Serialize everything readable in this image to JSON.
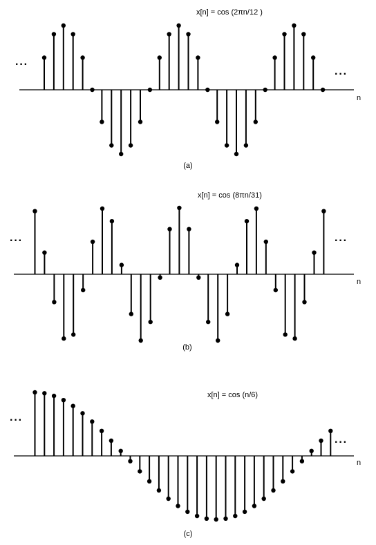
{
  "panels": [
    {
      "id": "a",
      "equation": "x[n] = cos (2πn/12 )",
      "caption": "(a)",
      "axis_label": "n",
      "ellipsis_left": "···",
      "ellipsis_right": "···"
    },
    {
      "id": "b",
      "equation": "x[n] = cos (8πn/31)",
      "caption": "(b)",
      "axis_label": "n",
      "ellipsis_left": "···",
      "ellipsis_right": "···"
    },
    {
      "id": "c",
      "equation": "x[n] = cos (n/6)",
      "caption": "(c)",
      "axis_label": "n",
      "ellipsis_left": "···",
      "ellipsis_right": "···"
    }
  ],
  "chart_data": [
    {
      "type": "stem",
      "title": "x[n] = cos (2πn/12 )",
      "xlabel": "n",
      "ylim": [
        -1,
        1
      ],
      "grid": false,
      "values": [
        0.5,
        0.866,
        1,
        0.866,
        0.5,
        0,
        -0.5,
        -0.866,
        -1,
        -0.866,
        -0.5,
        0,
        0.5,
        0.866,
        1,
        0.866,
        0.5,
        0,
        -0.5,
        -0.866,
        -1,
        -0.866,
        -0.5,
        0,
        0.5,
        0.866,
        1,
        0.866,
        0.5,
        0
      ]
    },
    {
      "type": "stem",
      "title": "x[n] = cos (8πn/31)",
      "xlabel": "n",
      "ylim": [
        -1,
        1
      ],
      "grid": false,
      "values": [
        0.951,
        0.326,
        -0.42,
        -0.97,
        -0.91,
        -0.24,
        0.49,
        0.99,
        0.8,
        0.14,
        -0.6,
        -1,
        -0.72,
        -0.05,
        0.68,
        1,
        0.68,
        -0.05,
        -0.72,
        -1,
        -0.6,
        0.14,
        0.8,
        0.99,
        0.49,
        -0.24,
        -0.91,
        -0.97,
        -0.42,
        0.326,
        0.951
      ]
    },
    {
      "type": "stem",
      "title": "x[n] = cos (n/6)",
      "xlabel": "n",
      "ylim": [
        -1,
        1
      ],
      "grid": false,
      "values": [
        1,
        0.986,
        0.945,
        0.878,
        0.786,
        0.671,
        0.54,
        0.394,
        0.239,
        0.078,
        -0.084,
        -0.244,
        -0.4,
        -0.544,
        -0.674,
        -0.788,
        -0.879,
        -0.946,
        -0.987,
        -1,
        -0.987,
        -0.946,
        -0.879,
        -0.788,
        -0.674,
        -0.544,
        -0.4,
        -0.244,
        -0.084,
        0.078,
        0.239,
        0.394
      ]
    }
  ]
}
